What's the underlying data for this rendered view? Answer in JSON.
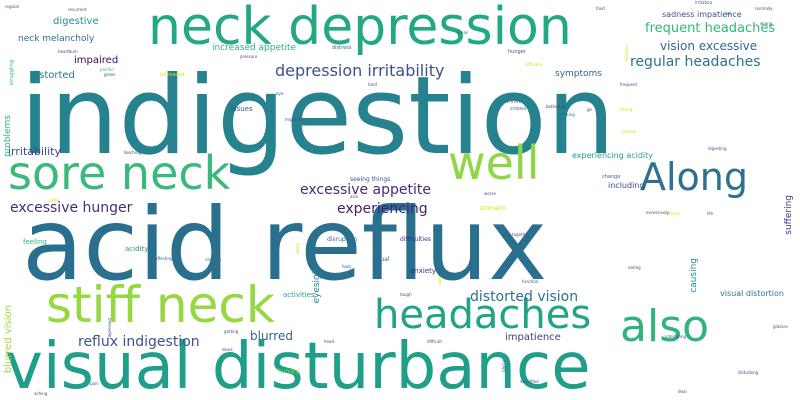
{
  "palette": {
    "green": "#2fb47c",
    "teal": "#1f9e89",
    "blue": "#2c728e",
    "slate": "#35608d",
    "purple": "#472c7a",
    "lime": "#95d840",
    "yellow": "#d8e219",
    "gray": "#b8b8b8"
  },
  "words": [
    {
      "text": "indigestion",
      "size": 108,
      "color": "#26828e"
    },
    {
      "text": "acid reflux",
      "size": 100,
      "color": "#2a6f8e"
    },
    {
      "text": "visual disturbance",
      "size": 64,
      "color": "#1f9e89"
    },
    {
      "text": "neck depression",
      "size": 52,
      "color": "#22a884"
    },
    {
      "text": "sore neck",
      "size": 46,
      "color": "#3bb97a"
    },
    {
      "text": "stiff neck",
      "size": 50,
      "color": "#95d840"
    },
    {
      "text": "headaches",
      "size": 40,
      "color": "#20a386"
    },
    {
      "text": "also",
      "size": 44,
      "color": "#2fb47c"
    },
    {
      "text": "well",
      "size": 46,
      "color": "#8ed645"
    },
    {
      "text": "Along",
      "size": 38,
      "color": "#2c728e"
    },
    {
      "text": "depression irritability",
      "size": 16,
      "color": "#3b528b"
    },
    {
      "text": "regular headaches",
      "size": 14,
      "color": "#2c728e"
    },
    {
      "text": "frequent headaches",
      "size": 13,
      "color": "#35b779"
    },
    {
      "text": "vision excessive",
      "size": 12,
      "color": "#31688e"
    },
    {
      "text": "excessive appetite",
      "size": 14,
      "color": "#482878"
    },
    {
      "text": "excessive hunger",
      "size": 14,
      "color": "#472c7a"
    },
    {
      "text": "experiencing",
      "size": 14,
      "color": "#481f71"
    },
    {
      "text": "distorted vision",
      "size": 14,
      "color": "#2c728e"
    },
    {
      "text": "reflux indigestion",
      "size": 14,
      "color": "#3b528b"
    },
    {
      "text": "blurred",
      "size": 12,
      "color": "#33638d"
    },
    {
      "text": "impatience",
      "size": 10,
      "color": "#443983"
    },
    {
      "text": "irritability",
      "size": 11,
      "color": "#3e4989"
    },
    {
      "text": "digestive",
      "size": 10,
      "color": "#21918c"
    },
    {
      "text": "neck melancholy",
      "size": 9,
      "color": "#2d708e"
    },
    {
      "text": "impaired",
      "size": 10,
      "color": "#440154"
    },
    {
      "text": "distorted",
      "size": 10,
      "color": "#2a788e"
    },
    {
      "text": "symptoms",
      "size": 9,
      "color": "#31688e"
    },
    {
      "text": "increased appetite",
      "size": 9,
      "color": "#2fb47c"
    },
    {
      "text": "sadness impatience",
      "size": 8,
      "color": "#3b528b"
    },
    {
      "text": "experiencing acidity",
      "size": 8,
      "color": "#1fa187"
    },
    {
      "text": "visual distortion",
      "size": 8,
      "color": "#2c728e"
    },
    {
      "text": "including",
      "size": 8,
      "color": "#3e4989"
    },
    {
      "text": "eyesight",
      "size": 9,
      "color": "#26828e"
    },
    {
      "text": "blurred vision",
      "size": 10,
      "color": "#a0da39"
    },
    {
      "text": "suffering",
      "size": 9,
      "color": "#46337e"
    },
    {
      "text": "causing",
      "size": 9,
      "color": "#21918c"
    },
    {
      "text": "problems",
      "size": 9,
      "color": "#2fb47c"
    },
    {
      "text": "acidity",
      "size": 7,
      "color": "#1f9e89"
    },
    {
      "text": "disruption",
      "size": 6,
      "color": "#2c728e"
    },
    {
      "text": "difficulties",
      "size": 6,
      "color": "#472c7a"
    },
    {
      "text": "activities",
      "size": 7,
      "color": "#1f9e89"
    },
    {
      "text": "feeling",
      "size": 7,
      "color": "#2fb47c"
    },
    {
      "text": "issues",
      "size": 7,
      "color": "#3b528b"
    },
    {
      "text": "anxiety",
      "size": 7,
      "color": "#482878"
    },
    {
      "text": "visual",
      "size": 6,
      "color": "#2c728e"
    },
    {
      "text": "stomach",
      "size": 6,
      "color": "#d8e219"
    },
    {
      "text": "hungry",
      "size": 6,
      "color": "#95d840"
    },
    {
      "text": "seeing things",
      "size": 6,
      "color": "#3b528b"
    },
    {
      "text": "change",
      "size": 5,
      "color": "#31688e"
    },
    {
      "text": "hunger",
      "size": 5,
      "color": "#3b528b"
    },
    {
      "text": "discomfort",
      "size": 5,
      "color": "#2c728e"
    },
    {
      "text": "distress",
      "size": 5,
      "color": "#31688e"
    },
    {
      "text": "heartburn",
      "size": 4,
      "color": "#3e4989"
    },
    {
      "text": "bothering",
      "size": 4,
      "color": "#443983"
    },
    {
      "text": "making",
      "size": 4,
      "color": "#2c728e"
    },
    {
      "text": "frequent",
      "size": 4,
      "color": "#3b528b"
    },
    {
      "text": "noticed",
      "size": 4,
      "color": "#d8e219"
    },
    {
      "text": "trouble",
      "size": 4,
      "color": "#d8e219"
    },
    {
      "text": "facing",
      "size": 4,
      "color": "#d8e219"
    },
    {
      "text": "digesting",
      "size": 4,
      "color": "#3b528b"
    },
    {
      "text": "struggling",
      "size": 5,
      "color": "#2fb47c"
    },
    {
      "text": "irritation",
      "size": 4,
      "color": "#3b528b"
    },
    {
      "text": "recurrent",
      "size": 4,
      "color": "#3b528b"
    },
    {
      "text": "regular",
      "size": 4,
      "color": "#3b528b"
    },
    {
      "text": "painful",
      "size": 4,
      "color": "#2fb47c"
    },
    {
      "text": "affecting",
      "size": 4,
      "color": "#3b528b"
    },
    {
      "text": "sadness",
      "size": 4,
      "color": "#2c728e"
    },
    {
      "text": "difficult",
      "size": 4,
      "color": "#3b528b"
    },
    {
      "text": "together",
      "size": 4,
      "color": "#3b528b"
    },
    {
      "text": "function",
      "size": 4,
      "color": "#3b528b"
    },
    {
      "text": "eating",
      "size": 4,
      "color": "#3b528b"
    },
    {
      "text": "interfering",
      "size": 4,
      "color": "#3b528b"
    },
    {
      "text": "disturbing",
      "size": 4,
      "color": "#3b528b"
    },
    {
      "text": "deal",
      "size": 4,
      "color": "#3b528b"
    },
    {
      "text": "glasses",
      "size": 4,
      "color": "#3b528b"
    },
    {
      "text": "life",
      "size": 4,
      "color": "#3b528b"
    },
    {
      "text": "excessively",
      "size": 4,
      "color": "#3b528b"
    },
    {
      "text": "migraines",
      "size": 4,
      "color": "#3b528b"
    },
    {
      "text": "difficulty",
      "size": 4,
      "color": "#d8e219"
    },
    {
      "text": "addition",
      "size": 4,
      "color": "#d8e219"
    },
    {
      "text": "food",
      "size": 4,
      "color": "#3b528b"
    },
    {
      "text": "lot",
      "size": 4,
      "color": "#3b528b"
    },
    {
      "text": "normally",
      "size": 4,
      "color": "#3b528b"
    },
    {
      "text": "depressed",
      "size": 4,
      "color": "#3b528b"
    },
    {
      "text": "getting",
      "size": 4,
      "color": "#3b528b"
    },
    {
      "text": "tough",
      "size": 4,
      "color": "#3b528b"
    },
    {
      "text": "daily",
      "size": 4,
      "color": "#d8e219"
    },
    {
      "text": "lately",
      "size": 4,
      "color": "#d8e219"
    },
    {
      "text": "hazy",
      "size": 4,
      "color": "#3b528b"
    },
    {
      "text": "deals",
      "size": 4,
      "color": "#3b528b"
    },
    {
      "text": "green",
      "size": 4,
      "color": "#3b528b"
    },
    {
      "text": "increased",
      "size": 5,
      "color": "#d8e219"
    },
    {
      "text": "irritated",
      "size": 4,
      "color": "#3b528b"
    },
    {
      "text": "eye",
      "size": 4,
      "color": "#3b528b"
    },
    {
      "text": "belching",
      "size": 4,
      "color": "#3b528b"
    },
    {
      "text": "suffer",
      "size": 4,
      "color": "#d8e219"
    },
    {
      "text": "amplified",
      "size": 4,
      "color": "#3b528b"
    },
    {
      "text": "head",
      "size": 4,
      "color": "#3b528b"
    },
    {
      "text": "pain",
      "size": 4,
      "color": "#3b528b"
    },
    {
      "text": "go",
      "size": 4,
      "color": "#3b528b"
    },
    {
      "text": "also",
      "size": 4,
      "color": "#3b528b"
    },
    {
      "text": "blurry",
      "size": 4,
      "color": "#3b528b"
    },
    {
      "text": "hard",
      "size": 4,
      "color": "#3b528b"
    },
    {
      "text": "pressure",
      "size": 4,
      "color": "#3b528b"
    },
    {
      "text": "areas",
      "size": 4,
      "color": "#3b528b"
    },
    {
      "text": "aching",
      "size": 4,
      "color": "#3b528b"
    },
    {
      "text": "wrong",
      "size": 4,
      "color": "#3b528b"
    },
    {
      "text": "worse",
      "size": 4,
      "color": "#3b528b"
    }
  ]
}
